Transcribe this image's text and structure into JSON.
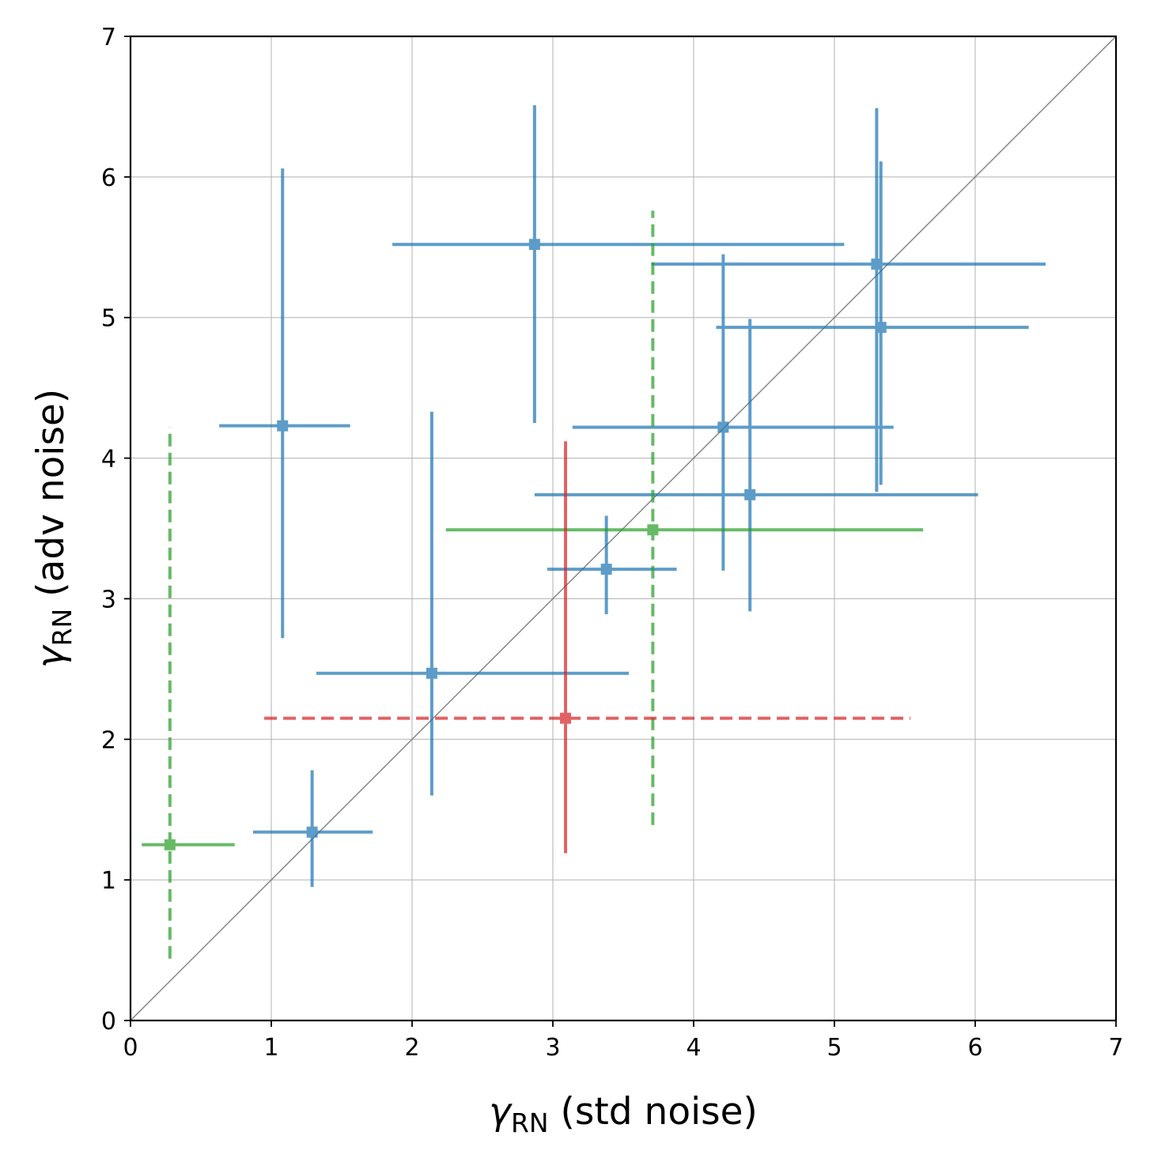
{
  "chart_data": {
    "type": "scatter",
    "title": "",
    "xlabel": "γ_RN (std noise)",
    "ylabel": "γ_RN (adv noise)",
    "axis_label_parts": {
      "symbol": "γ",
      "subscript": "RN",
      "x_suffix": " (std noise)",
      "y_suffix": " (adv noise)"
    },
    "xlim": [
      0,
      7
    ],
    "ylim": [
      0,
      7
    ],
    "xticks": [
      "0",
      "1",
      "2",
      "3",
      "4",
      "5",
      "6",
      "7"
    ],
    "yticks": [
      "0",
      "1",
      "2",
      "3",
      "4",
      "5",
      "6",
      "7"
    ],
    "grid": true,
    "diagonal_reference": true,
    "colors": {
      "blue": "#1f77b4",
      "green": "#2ca02c",
      "red": "#d62728",
      "diagonal": "#808080",
      "grid": "#b0b0b0"
    },
    "series": [
      {
        "color": "#1f77b4",
        "points": [
          {
            "x": 1.08,
            "y": 4.23,
            "xerr": [
              0.63,
              1.56
            ],
            "yerr": [
              2.72,
              6.06
            ],
            "x_dashed": false,
            "y_dashed": false
          },
          {
            "x": 2.87,
            "y": 5.52,
            "xerr": [
              1.86,
              5.07
            ],
            "yerr": [
              4.25,
              6.51
            ],
            "x_dashed": false,
            "y_dashed": false
          },
          {
            "x": 5.3,
            "y": 5.38,
            "xerr": [
              3.7,
              6.5
            ],
            "yerr": [
              3.76,
              6.49
            ],
            "x_dashed": false,
            "y_dashed": false
          },
          {
            "x": 5.33,
            "y": 4.93,
            "xerr": [
              4.16,
              6.38
            ],
            "yerr": [
              3.81,
              6.11
            ],
            "x_dashed": false,
            "y_dashed": false
          },
          {
            "x": 4.21,
            "y": 4.22,
            "xerr": [
              3.14,
              5.42
            ],
            "yerr": [
              3.2,
              5.45
            ],
            "x_dashed": false,
            "y_dashed": false
          },
          {
            "x": 4.4,
            "y": 3.74,
            "xerr": [
              2.87,
              6.02
            ],
            "yerr": [
              2.91,
              4.99
            ],
            "x_dashed": false,
            "y_dashed": false
          },
          {
            "x": 3.38,
            "y": 3.21,
            "xerr": [
              2.96,
              3.88
            ],
            "yerr": [
              2.89,
              3.59
            ],
            "x_dashed": false,
            "y_dashed": false
          },
          {
            "x": 2.14,
            "y": 2.47,
            "xerr": [
              1.32,
              3.54
            ],
            "yerr": [
              1.6,
              4.33
            ],
            "x_dashed": false,
            "y_dashed": false
          },
          {
            "x": 1.29,
            "y": 1.34,
            "xerr": [
              0.87,
              1.72
            ],
            "yerr": [
              0.95,
              1.78
            ],
            "x_dashed": false,
            "y_dashed": false
          }
        ]
      },
      {
        "color": "#2ca02c",
        "points": [
          {
            "x": 3.71,
            "y": 3.49,
            "xerr": [
              2.24,
              5.63
            ],
            "yerr": [
              1.39,
              5.76
            ],
            "x_dashed": false,
            "y_dashed": true
          },
          {
            "x": 0.28,
            "y": 1.25,
            "xerr": [
              0.08,
              0.74
            ],
            "yerr": [
              0.44,
              4.22
            ],
            "x_dashed": false,
            "y_dashed": true
          }
        ]
      },
      {
        "color": "#d62728",
        "points": [
          {
            "x": 3.09,
            "y": 2.15,
            "xerr": [
              0.95,
              5.54
            ],
            "yerr": [
              1.19,
              4.12
            ],
            "x_dashed": true,
            "y_dashed": false
          }
        ]
      }
    ]
  }
}
